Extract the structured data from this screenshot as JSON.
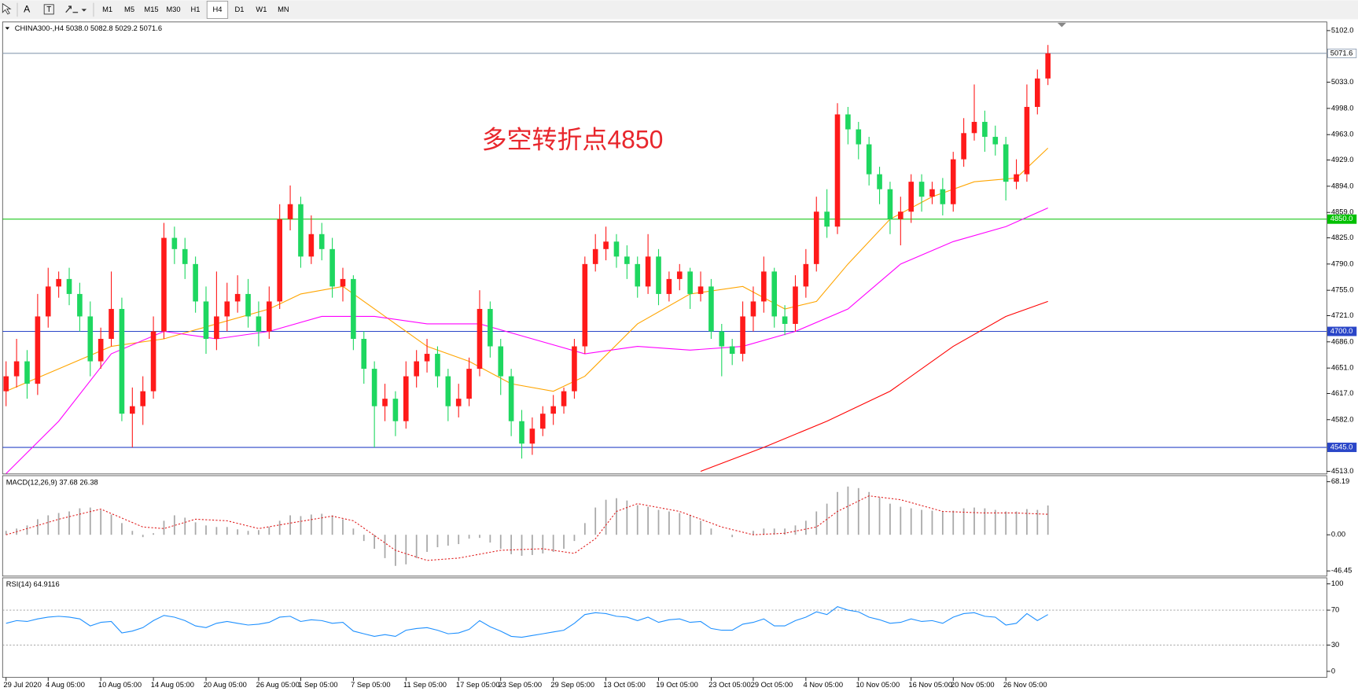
{
  "toolbar": {
    "text_tool": "A",
    "buttons": [
      "M1",
      "M5",
      "M15",
      "M30",
      "H1",
      "H4",
      "D1",
      "W1",
      "MN"
    ],
    "active": 5
  },
  "chart_data": [
    {
      "type": "candlestick",
      "title": "CHINA300-,H4  5038.0 5082.8 5029.2 5071.6",
      "annotation": "多空转折点4850",
      "annotation_color": "#e8262c",
      "up_color": "#ff1a1a",
      "down_color": "#1ed760",
      "open": [
        4620,
        4640,
        4660,
        4630,
        4720,
        4760,
        4770,
        4750,
        4720,
        4660,
        4690,
        4730,
        4590,
        4600,
        4620,
        4700,
        4825,
        4810,
        4790,
        4740,
        4690,
        4720,
        4740,
        4750,
        4720,
        4700,
        4740,
        4850,
        4870,
        4800,
        4830,
        4810,
        4760,
        4770,
        4690,
        4650,
        4600,
        4610,
        4580,
        4640,
        4660,
        4670,
        4640,
        4600,
        4610,
        4650,
        4730,
        4680,
        4640,
        4580,
        4550,
        4570,
        4590,
        4600,
        4620,
        4680,
        4790,
        4810,
        4820,
        4800,
        4790,
        4760,
        4800,
        4750,
        4770,
        4780,
        4750,
        4760,
        4700,
        4680,
        4670,
        4720,
        4740,
        4780,
        4720,
        4710,
        4760,
        4790,
        4860,
        4840,
        4990,
        4970,
        4950,
        4910,
        4890,
        4850,
        4860,
        4900,
        4880,
        4890,
        4870,
        4930,
        4965,
        4980,
        4960,
        4950,
        4900,
        4910,
        5000,
        5038.0
      ],
      "high": [
        4660,
        4690,
        4675,
        4750,
        4785,
        4780,
        4785,
        4765,
        4740,
        4705,
        4780,
        4745,
        4625,
        4640,
        4720,
        4845,
        4840,
        4825,
        4800,
        4760,
        4780,
        4765,
        4775,
        4770,
        4740,
        4760,
        4870,
        4895,
        4880,
        4855,
        4845,
        4825,
        4785,
        4775,
        4700,
        4660,
        4630,
        4620,
        4660,
        4675,
        4690,
        4680,
        4650,
        4630,
        4665,
        4755,
        4740,
        4690,
        4650,
        4595,
        4585,
        4600,
        4615,
        4625,
        4690,
        4800,
        4830,
        4840,
        4830,
        4815,
        4800,
        4830,
        4810,
        4780,
        4790,
        4785,
        4780,
        4770,
        4710,
        4690,
        4740,
        4760,
        4800,
        4785,
        4735,
        4775,
        4810,
        4880,
        4890,
        5005,
        5000,
        4980,
        4960,
        4920,
        4900,
        4880,
        4910,
        4910,
        4900,
        4905,
        4940,
        4985,
        5030,
        4995,
        4975,
        4960,
        4930,
        5030,
        5050,
        5082.8
      ],
      "low": [
        4600,
        4625,
        4610,
        4615,
        4705,
        4745,
        4735,
        4700,
        4640,
        4650,
        4680,
        4580,
        4545,
        4575,
        4610,
        4690,
        4790,
        4770,
        4725,
        4670,
        4675,
        4700,
        4725,
        4705,
        4680,
        4690,
        4730,
        4835,
        4785,
        4790,
        4795,
        4745,
        4740,
        4675,
        4630,
        4545,
        4580,
        4560,
        4570,
        4625,
        4645,
        4625,
        4580,
        4585,
        4600,
        4640,
        4665,
        4615,
        4560,
        4530,
        4535,
        4560,
        4575,
        4590,
        4610,
        4670,
        4780,
        4795,
        4785,
        4770,
        4745,
        4750,
        4735,
        4740,
        4755,
        4730,
        4740,
        4690,
        4640,
        4655,
        4660,
        4700,
        4725,
        4705,
        4695,
        4700,
        4745,
        4780,
        4825,
        4830,
        4950,
        4930,
        4895,
        4870,
        4830,
        4815,
        4845,
        4860,
        4870,
        4855,
        4860,
        4920,
        4955,
        4940,
        4935,
        4875,
        4890,
        4900,
        4990,
        5029.2
      ],
      "close": [
        4640,
        4660,
        4630,
        4720,
        4760,
        4770,
        4750,
        4720,
        4660,
        4690,
        4730,
        4590,
        4600,
        4620,
        4700,
        4825,
        4810,
        4790,
        4740,
        4690,
        4720,
        4740,
        4750,
        4720,
        4700,
        4740,
        4850,
        4870,
        4800,
        4830,
        4810,
        4760,
        4770,
        4690,
        4650,
        4600,
        4610,
        4580,
        4640,
        4660,
        4670,
        4640,
        4600,
        4610,
        4650,
        4730,
        4680,
        4640,
        4580,
        4550,
        4570,
        4590,
        4600,
        4620,
        4680,
        4790,
        4810,
        4820,
        4800,
        4790,
        4760,
        4800,
        4750,
        4770,
        4780,
        4750,
        4760,
        4700,
        4680,
        4670,
        4720,
        4740,
        4780,
        4720,
        4710,
        4760,
        4790,
        4860,
        4840,
        4990,
        4970,
        4950,
        4910,
        4890,
        4850,
        4860,
        4900,
        4880,
        4890,
        4870,
        4930,
        4965,
        4980,
        4960,
        4950,
        4900,
        4910,
        5000,
        5038,
        5071.6
      ],
      "lines": [
        {
          "color": "#ffa500",
          "x": [
            0,
            5,
            10,
            15,
            20,
            25,
            28,
            32,
            36,
            40,
            44,
            48,
            52,
            55,
            60,
            65,
            70,
            74,
            77,
            80,
            84,
            88,
            92,
            96,
            99
          ],
          "values": [
            4620,
            4650,
            4680,
            4690,
            4710,
            4730,
            4750,
            4760,
            4720,
            4680,
            4660,
            4630,
            4620,
            4640,
            4710,
            4750,
            4760,
            4730,
            4740,
            4790,
            4850,
            4880,
            4900,
            4905,
            4945
          ]
        },
        {
          "color": "#ff00ff",
          "x": [
            0,
            5,
            10,
            15,
            20,
            25,
            30,
            35,
            40,
            45,
            50,
            55,
            60,
            65,
            70,
            75,
            80,
            85,
            90,
            95,
            99
          ],
          "values": [
            4510,
            4580,
            4670,
            4700,
            4690,
            4700,
            4720,
            4720,
            4710,
            4710,
            4690,
            4670,
            4680,
            4675,
            4680,
            4700,
            4730,
            4790,
            4820,
            4840,
            4865
          ]
        },
        {
          "color": "#ff0000",
          "x": [
            66,
            72,
            78,
            84,
            90,
            95,
            99
          ],
          "values": [
            4513,
            4545,
            4580,
            4620,
            4680,
            4720,
            4740
          ]
        }
      ],
      "levels": [
        {
          "value": 5071.6,
          "label": "5071.6",
          "color": "#8a9bb0",
          "box": "#ffffff",
          "text_color": "#000000"
        },
        {
          "value": 4850,
          "label": "4850.0",
          "color": "#00c000",
          "box": "#00c000",
          "text_color": "#ffffff"
        },
        {
          "value": 4700,
          "label": "4700.0",
          "color": "#2a46c8",
          "box": "#2a46c8",
          "text_color": "#ffffff"
        },
        {
          "value": 4545,
          "label": "4545.0",
          "color": "#2a46c8",
          "box": "#2a46c8",
          "text_color": "#ffffff"
        }
      ],
      "xlim": [
        -0.33,
        125.5
      ],
      "ylim": [
        4509.5,
        5113.6
      ],
      "yticks": [
        {
          "value": 5102,
          "label": "5102.0"
        },
        {
          "value": 5033,
          "label": "5033.0"
        },
        {
          "value": 4998,
          "label": "4998.0"
        },
        {
          "value": 4963,
          "label": "4963.0"
        },
        {
          "value": 4929,
          "label": "4929.0"
        },
        {
          "value": 4894,
          "label": "4894.0"
        },
        {
          "value": 4859,
          "label": "4859.0"
        },
        {
          "value": 4825,
          "label": "4825.0"
        },
        {
          "value": 4790,
          "label": "4790.0"
        },
        {
          "value": 4755,
          "label": "4755.0"
        },
        {
          "value": 4721,
          "label": "4721.0"
        },
        {
          "value": 4686,
          "label": "4686.0"
        },
        {
          "value": 4651,
          "label": "4651.0"
        },
        {
          "value": 4617,
          "label": "4617.0"
        },
        {
          "value": 4582,
          "label": "4582.0"
        },
        {
          "value": 4513,
          "label": "4513.0"
        }
      ],
      "xticks": [
        {
          "value": 0,
          "label": "29 Jul 2020"
        },
        {
          "value": 4,
          "label": "4 Aug 05:00"
        },
        {
          "value": 9,
          "label": "10 Aug 05:00"
        },
        {
          "value": 14,
          "label": "14 Aug 05:00"
        },
        {
          "value": 19,
          "label": "20 Aug 05:00"
        },
        {
          "value": 24,
          "label": "26 Aug 05:00"
        },
        {
          "value": 28,
          "label": "1 Sep 05:00"
        },
        {
          "value": 33,
          "label": "7 Sep 05:00"
        },
        {
          "value": 38,
          "label": "11 Sep 05:00"
        },
        {
          "value": 43,
          "label": "17 Sep 05:00"
        },
        {
          "value": 47,
          "label": "23 Sep 05:00"
        },
        {
          "value": 52,
          "label": "29 Sep 05:00"
        },
        {
          "value": 57,
          "label": "13 Oct 05:00"
        },
        {
          "value": 62,
          "label": "19 Oct 05:00"
        },
        {
          "value": 67,
          "label": "23 Oct 05:00"
        },
        {
          "value": 71,
          "label": "29 Oct 05:00"
        },
        {
          "value": 76,
          "label": "4 Nov 05:00"
        },
        {
          "value": 81,
          "label": "10 Nov 05:00"
        },
        {
          "value": 86,
          "label": "16 Nov 05:00"
        },
        {
          "value": 90,
          "label": "20 Nov 05:00"
        },
        {
          "value": 95,
          "label": "26 Nov 05:00"
        }
      ]
    },
    {
      "type": "macd",
      "title": "MACD(12,26,9) 37.68 26.38",
      "color": "#a8a8a8",
      "values": [
        5,
        8,
        12,
        20,
        25,
        28,
        30,
        34,
        35,
        32,
        26,
        15,
        5,
        -3,
        2,
        18,
        25,
        22,
        16,
        12,
        10,
        10,
        7,
        5,
        6,
        10,
        18,
        25,
        24,
        26,
        27,
        25,
        20,
        8,
        -8,
        -18,
        -30,
        -40,
        -38,
        -30,
        -22,
        -16,
        -14,
        -12,
        -5,
        -4,
        -10,
        -18,
        -25,
        -27,
        -26,
        -24,
        -22,
        -18,
        -8,
        15,
        35,
        45,
        47,
        44,
        38,
        36,
        32,
        30,
        28,
        25,
        18,
        8,
        0,
        -3,
        0,
        5,
        8,
        8,
        8,
        12,
        18,
        30,
        40,
        55,
        62,
        60,
        55,
        48,
        40,
        36,
        34,
        32,
        31,
        30,
        31,
        34,
        35,
        34,
        32,
        30,
        30,
        33,
        32,
        37.68
      ],
      "signal": {
        "color": "#e02020",
        "x": [
          0,
          5,
          9,
          13,
          15,
          18,
          21,
          24,
          27,
          31,
          33,
          37,
          40,
          43,
          47,
          51,
          54,
          56,
          58,
          60,
          64,
          68,
          71,
          74,
          77,
          79,
          82,
          85,
          89,
          93,
          96,
          99
        ],
        "values": [
          0,
          20,
          33,
          10,
          8,
          20,
          18,
          8,
          15,
          24,
          18,
          -20,
          -33,
          -30,
          -20,
          -18,
          -24,
          -5,
          30,
          40,
          30,
          10,
          0,
          2,
          10,
          30,
          50,
          45,
          30,
          28,
          28,
          26.38
        ]
      },
      "ylim": [
        -46.45,
        68.19
      ],
      "yticks": [
        68.19,
        {
          "value": 0,
          "label": "0.00"
        },
        -46.45
      ]
    },
    {
      "type": "line",
      "title": "RSI(14) 64.9116",
      "color": "#1e90ff",
      "values": [
        55,
        58,
        57,
        60,
        62,
        63,
        62,
        60,
        52,
        56,
        57,
        44,
        46,
        50,
        58,
        64,
        62,
        58,
        52,
        50,
        55,
        57,
        55,
        53,
        54,
        56,
        62,
        63,
        57,
        59,
        58,
        55,
        56,
        46,
        43,
        40,
        42,
        40,
        47,
        49,
        50,
        47,
        43,
        44,
        48,
        58,
        51,
        46,
        40,
        39,
        41,
        43,
        45,
        47,
        55,
        65,
        67,
        66,
        63,
        62,
        58,
        62,
        56,
        59,
        60,
        56,
        57,
        49,
        47,
        47,
        54,
        56,
        60,
        52,
        52,
        58,
        62,
        68,
        65,
        74,
        70,
        68,
        62,
        59,
        55,
        56,
        60,
        57,
        58,
        55,
        62,
        66,
        67,
        63,
        62,
        53,
        55,
        66,
        58,
        64.9116
      ],
      "ylim": [
        0,
        100
      ],
      "yticks": [
        100,
        70,
        30,
        0
      ]
    }
  ]
}
